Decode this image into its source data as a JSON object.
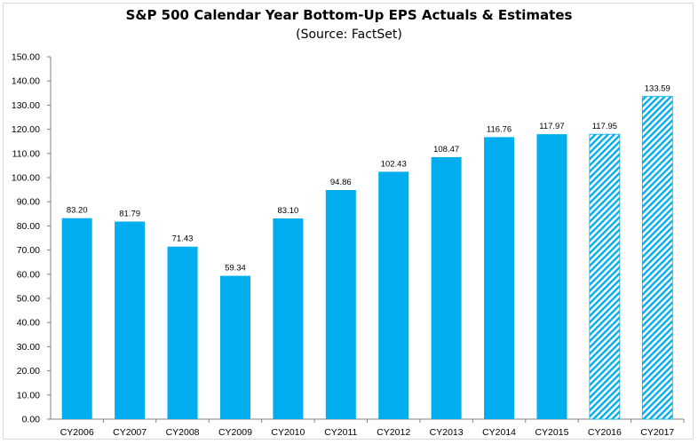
{
  "chart_data": {
    "type": "bar",
    "title": "S&P 500 Calendar Year Bottom-Up EPS Actuals & Estimates",
    "subtitle": "(Source: FactSet)",
    "xlabel": "",
    "ylabel": "",
    "ylim": [
      0,
      150
    ],
    "ytick_step": 10,
    "grid": false,
    "legend": "none",
    "categories": [
      "CY2006",
      "CY2007",
      "CY2008",
      "CY2009",
      "CY2010",
      "CY2011",
      "CY2012",
      "CY2013",
      "CY2014",
      "CY2015",
      "CY2016",
      "CY2017"
    ],
    "values": [
      83.2,
      81.79,
      71.43,
      59.34,
      83.1,
      94.86,
      102.43,
      108.47,
      116.76,
      117.97,
      117.95,
      133.59
    ],
    "labels": [
      "83.20",
      "81.79",
      "71.43",
      "59.34",
      "83.10",
      "94.86",
      "102.43",
      "108.47",
      "116.76",
      "117.97",
      "117.95",
      "133.59"
    ],
    "estimate": [
      false,
      false,
      false,
      false,
      false,
      false,
      false,
      false,
      false,
      false,
      true,
      true
    ],
    "colors": {
      "actual": "#00aeef",
      "estimate": "#00aeef"
    }
  }
}
